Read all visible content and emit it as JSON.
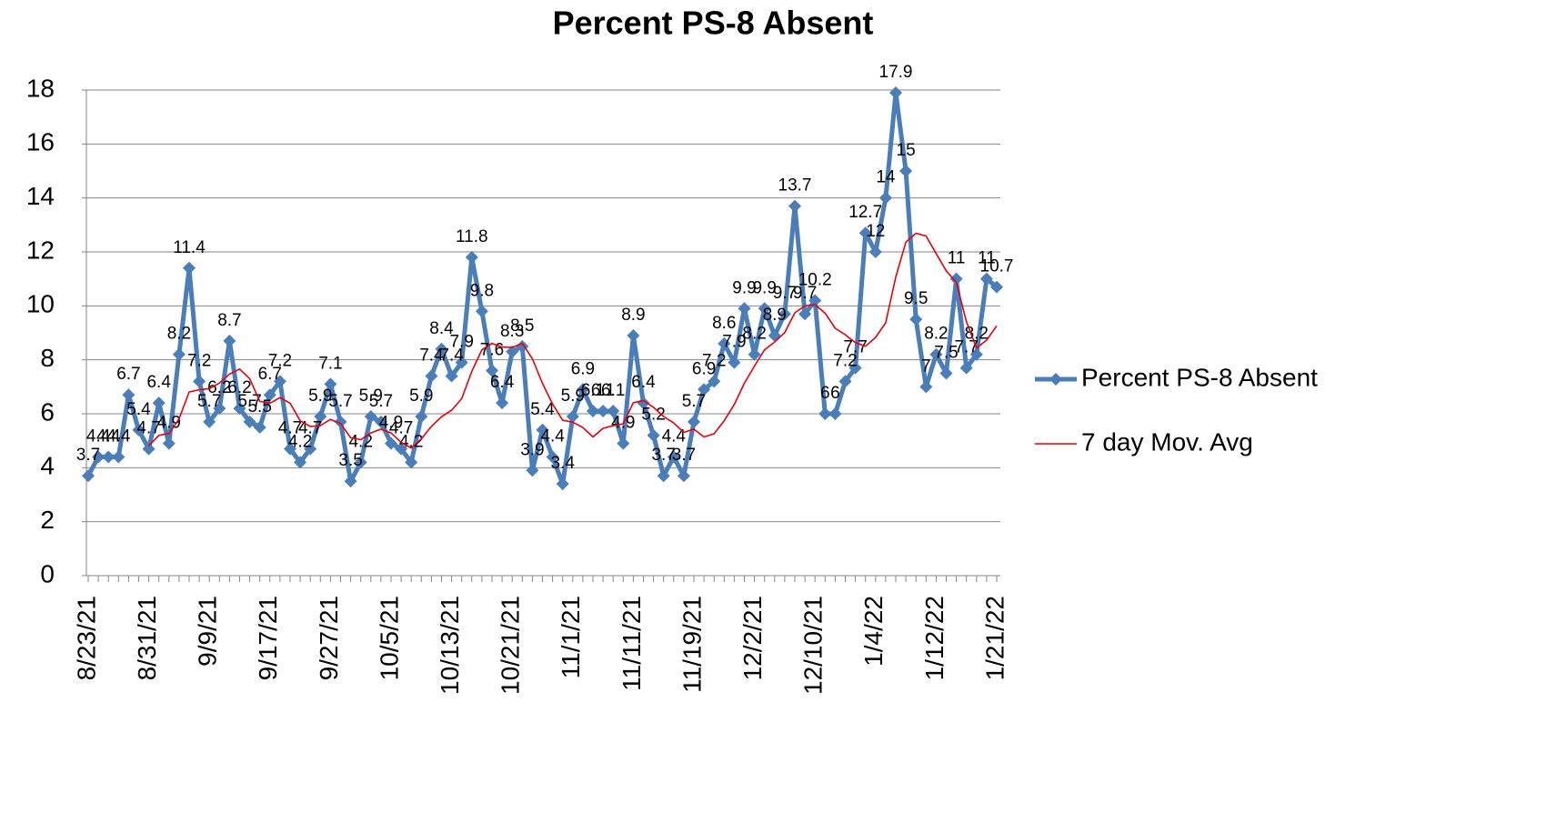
{
  "chart_data": {
    "type": "line",
    "title": "Percent PS-8 Absent",
    "categories": [
      "8/23/21",
      null,
      null,
      null,
      null,
      null,
      "8/31/21",
      null,
      null,
      null,
      null,
      null,
      "9/9/21",
      null,
      null,
      null,
      null,
      null,
      "9/17/21",
      null,
      null,
      null,
      null,
      null,
      "9/27/21",
      null,
      null,
      null,
      null,
      null,
      "10/5/21",
      null,
      null,
      null,
      null,
      null,
      "10/13/21",
      null,
      null,
      null,
      null,
      null,
      "10/21/21",
      null,
      null,
      null,
      null,
      null,
      "11/1/21",
      null,
      null,
      null,
      null,
      null,
      "11/11/21",
      null,
      null,
      null,
      null,
      null,
      "11/19/21",
      null,
      null,
      null,
      null,
      null,
      "12/2/21",
      null,
      null,
      null,
      null,
      null,
      "12/10/21",
      null,
      null,
      null,
      null,
      null,
      "1/4/22",
      null,
      null,
      null,
      null,
      null,
      "1/12/22",
      null,
      null,
      null,
      null,
      null,
      "1/21/22"
    ],
    "series": [
      {
        "name": "Percent PS-8 Absent",
        "color": "#4a7ebb",
        "data_labels": true,
        "values": [
          3.7,
          4.4,
          4.4,
          4.4,
          6.7,
          5.4,
          4.7,
          6.4,
          4.9,
          8.2,
          11.4,
          7.2,
          5.7,
          6.2,
          8.7,
          6.2,
          5.7,
          5.5,
          6.7,
          7.2,
          4.7,
          4.2,
          4.7,
          5.9,
          7.1,
          5.7,
          3.5,
          4.2,
          5.9,
          5.7,
          4.9,
          4.7,
          4.2,
          5.9,
          7.4,
          8.4,
          7.4,
          7.9,
          11.8,
          9.8,
          7.6,
          6.4,
          8.3,
          8.5,
          3.9,
          5.4,
          4.4,
          3.4,
          5.9,
          6.9,
          6.1,
          6.1,
          6.1,
          4.9,
          8.9,
          6.4,
          5.2,
          3.7,
          4.4,
          3.7,
          5.7,
          6.9,
          7.2,
          8.6,
          7.9,
          9.9,
          8.2,
          9.9,
          8.9,
          9.7,
          13.7,
          9.7,
          10.2,
          6,
          6,
          7.2,
          7.7,
          12.7,
          12,
          14,
          17.9,
          15,
          9.5,
          7,
          8.2,
          7.5,
          11,
          7.7,
          8.2,
          11,
          10.7
        ]
      },
      {
        "name": "7 day Mov. Avg",
        "color": "#e8000b",
        "data_labels": false,
        "values": [
          null,
          null,
          null,
          null,
          null,
          null,
          4.81,
          5.2,
          5.27,
          5.81,
          6.81,
          6.89,
          6.93,
          7.14,
          7.47,
          7.66,
          7.3,
          6.46,
          6.39,
          6.6,
          6.39,
          5.74,
          5.53,
          5.56,
          5.79,
          5.64,
          5.11,
          5.04,
          5.29,
          5.43,
          5.29,
          4.94,
          4.73,
          5.07,
          5.53,
          5.89,
          6.13,
          6.56,
          7.57,
          8.37,
          8.61,
          8.47,
          8.46,
          8.61,
          8.04,
          7.13,
          6.36,
          5.76,
          5.69,
          5.49,
          5.14,
          5.46,
          5.56,
          5.63,
          6.41,
          6.49,
          6.24,
          5.9,
          5.66,
          5.31,
          5.43,
          5.14,
          5.26,
          5.74,
          6.34,
          7.13,
          7.77,
          8.37,
          8.66,
          9.01,
          9.74,
          10,
          10.04,
          9.73,
          9.17,
          8.93,
          8.64,
          8.5,
          8.83,
          9.37,
          11.07,
          12.36,
          12.69,
          12.59,
          11.94,
          11.3,
          10.87,
          9.41,
          8.44,
          8.73,
          9.26
        ]
      }
    ],
    "ylim": [
      0,
      18
    ],
    "yticks": [
      0,
      2,
      4,
      6,
      8,
      10,
      12,
      14,
      16,
      18
    ],
    "grid": true,
    "legend": "right"
  }
}
